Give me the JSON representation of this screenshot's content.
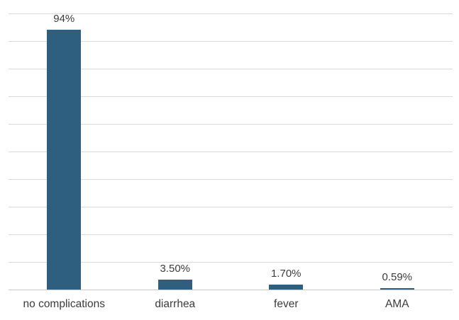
{
  "chart_data": {
    "type": "bar",
    "title": "",
    "xlabel": "",
    "ylabel": "",
    "categories": [
      "no complications",
      "diarrhea",
      "fever",
      "AMA"
    ],
    "values": [
      94,
      3.5,
      1.7,
      0.59
    ],
    "value_labels": [
      "94%",
      "3.50%",
      "1.70%",
      "0.59%"
    ],
    "ylim": [
      0,
      100
    ],
    "gridline_step": 10,
    "grid": true,
    "legend_position": "none",
    "y_tick_labels_visible": false,
    "bar_color": "#2F5F7E",
    "gridline_color": "#D9D9D9",
    "axis_line_color": "#C9C9C9",
    "text_color": "#3B3B3B",
    "background_color": "#FFFFFF"
  }
}
